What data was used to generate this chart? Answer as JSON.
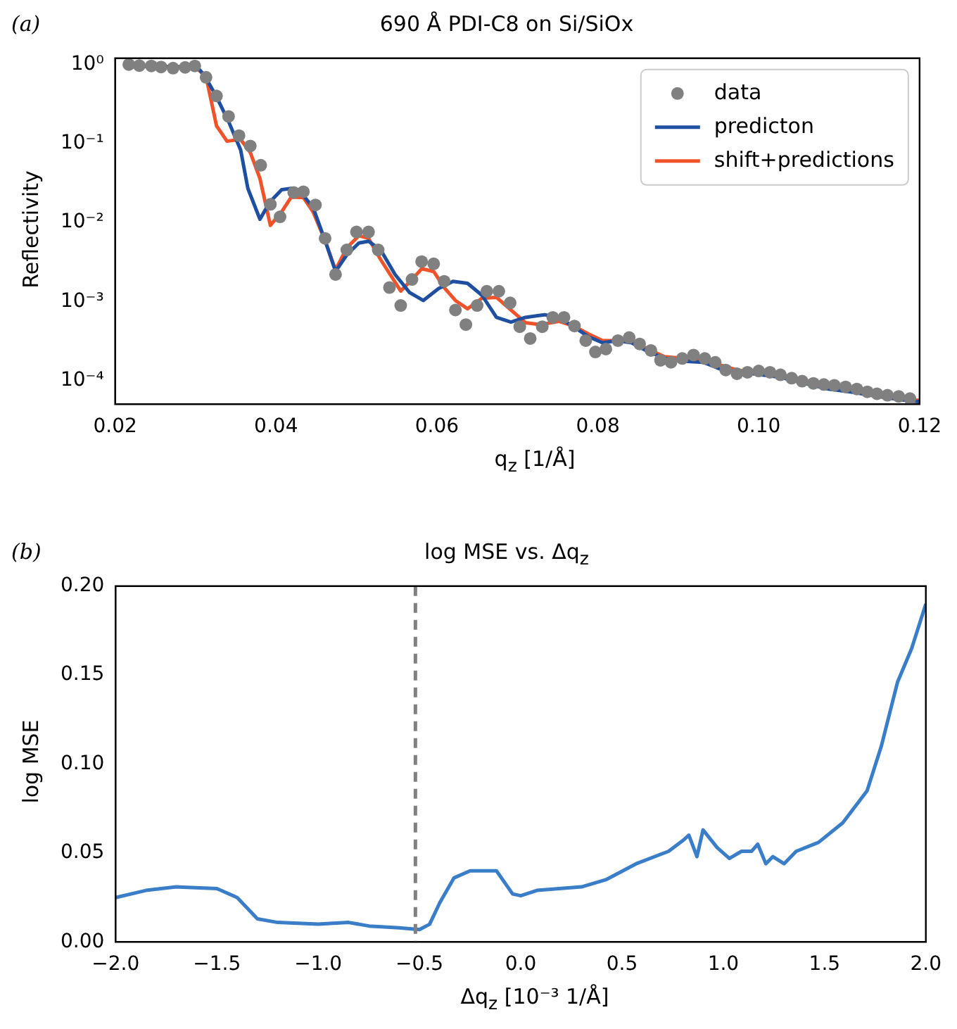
{
  "chart_data": [
    {
      "type": "line",
      "title": "690 Å PDI-C8 on Si/SiOx",
      "xlabel": "q$_{z}$ [1/Å]",
      "ylabel": "Reflectivity",
      "annotations": [
        "(a)"
      ],
      "log": "y",
      "grid": false,
      "legend": "top right",
      "xlim": [
        0.02,
        0.12
      ],
      "ylim": [
        5e-05,
        1.2
      ],
      "xticks": [
        {
          "value": 0.02,
          "label": "0.02"
        },
        {
          "value": 0.04,
          "label": "0.04"
        },
        {
          "value": 0.06,
          "label": "0.06"
        },
        {
          "value": 0.08,
          "label": "0.08"
        },
        {
          "value": 0.1,
          "label": "0.10"
        },
        {
          "value": 0.12,
          "label": "0.12"
        }
      ],
      "yticks": [
        {
          "value": 0.0001,
          "label": "10⁻⁴"
        },
        {
          "value": 0.001,
          "label": "10⁻³"
        },
        {
          "value": 0.01,
          "label": "10⁻²"
        },
        {
          "value": 0.1,
          "label": "10⁻¹"
        },
        {
          "value": 1,
          "label": "10⁰"
        }
      ],
      "series": [
        {
          "name": "data",
          "type": "scatter",
          "marker": "circle",
          "color": "#808080",
          "x": [
            0.0217,
            0.023,
            0.0245,
            0.0257,
            0.0272,
            0.0287,
            0.0299,
            0.0313,
            0.0326,
            0.0341,
            0.0354,
            0.0368,
            0.0381,
            0.0393,
            0.0405,
            0.0422,
            0.0434,
            0.0449,
            0.0461,
            0.0474,
            0.0488,
            0.05,
            0.0515,
            0.0527,
            0.0541,
            0.0555,
            0.0569,
            0.0581,
            0.0596,
            0.0609,
            0.0623,
            0.0636,
            0.065,
            0.0662,
            0.0677,
            0.0691,
            0.0703,
            0.0716,
            0.0731,
            0.0744,
            0.0758,
            0.0771,
            0.0785,
            0.0797,
            0.081,
            0.0825,
            0.0839,
            0.0852,
            0.0866,
            0.0878,
            0.0891,
            0.0905,
            0.0919,
            0.0933,
            0.0946,
            0.0959,
            0.0973,
            0.0986,
            0.1,
            0.1014,
            0.1027,
            0.1041,
            0.1054,
            0.1068,
            0.1081,
            0.1094,
            0.1108,
            0.1122,
            0.1135,
            0.1147,
            0.116,
            0.1174,
            0.1188
          ],
          "values": [
            1.0,
            0.97,
            0.96,
            0.93,
            0.9,
            0.92,
            0.96,
            0.69,
            0.4,
            0.22,
            0.126,
            0.093,
            0.053,
            0.017,
            0.0118,
            0.024,
            0.0245,
            0.0167,
            0.0063,
            0.0022,
            0.0045,
            0.0076,
            0.0076,
            0.0045,
            0.0015,
            0.00089,
            0.0019,
            0.0032,
            0.003,
            0.0018,
            0.00078,
            0.00051,
            0.00089,
            0.00135,
            0.00135,
            0.00096,
            0.00048,
            0.00034,
            0.00048,
            0.00063,
            0.00063,
            0.00049,
            0.00032,
            0.00023,
            0.00025,
            0.00032,
            0.00035,
            0.00029,
            0.00024,
            0.00018,
            0.00017,
            0.00019,
            0.00021,
            0.00019,
            0.00017,
            0.000136,
            0.000122,
            0.000127,
            0.000132,
            0.000127,
            0.000118,
            0.000107,
            9.8e-05,
            9.2e-05,
            8.9e-05,
            8.7e-05,
            8.3e-05,
            7.8e-05,
            7.2e-05,
            6.8e-05,
            6.5e-05,
            6.3e-05,
            5.9e-05
          ]
        },
        {
          "name": "predicton",
          "color": "#1f4fa0",
          "x": [
            0.0217,
            0.0302,
            0.0311,
            0.0326,
            0.0341,
            0.0356,
            0.0365,
            0.038,
            0.0392,
            0.0407,
            0.0419,
            0.0434,
            0.0446,
            0.0461,
            0.0474,
            0.0488,
            0.0503,
            0.0515,
            0.053,
            0.0548,
            0.0566,
            0.0583,
            0.0602,
            0.062,
            0.0638,
            0.0656,
            0.0674,
            0.0692,
            0.071,
            0.0734,
            0.0752,
            0.077,
            0.0788,
            0.0806,
            0.0824,
            0.0842,
            0.086,
            0.0883,
            0.0907,
            0.0931,
            0.0955,
            0.0979,
            0.1003,
            0.1027,
            0.1057,
            0.1087,
            0.1117,
            0.1147,
            0.1177,
            0.12
          ],
          "values": [
            0.96,
            0.93,
            0.73,
            0.39,
            0.19,
            0.083,
            0.027,
            0.011,
            0.018,
            0.026,
            0.027,
            0.022,
            0.0156,
            0.0059,
            0.0024,
            0.0039,
            0.0055,
            0.0058,
            0.0045,
            0.0022,
            0.0013,
            0.00103,
            0.00146,
            0.0018,
            0.0017,
            0.0012,
            0.00063,
            0.00055,
            0.00063,
            0.00068,
            0.00062,
            0.00048,
            0.00036,
            0.0003,
            0.00032,
            0.0003,
            0.00024,
            0.00019,
            0.000175,
            0.00017,
            0.000136,
            0.000127,
            0.000118,
            0.00011,
            9.2e-05,
            7.8e-05,
            7.1e-05,
            6.3e-05,
            5.7e-05,
            5.4e-05
          ]
        },
        {
          "name": "shift+predictions",
          "color": "#f0522a",
          "x": [
            0.0217,
            0.0302,
            0.0313,
            0.0326,
            0.0339,
            0.0356,
            0.0368,
            0.038,
            0.0393,
            0.0407,
            0.0419,
            0.0434,
            0.0446,
            0.0461,
            0.0474,
            0.0488,
            0.0503,
            0.0515,
            0.053,
            0.0555,
            0.0569,
            0.0581,
            0.0596,
            0.0609,
            0.0623,
            0.0638,
            0.0656,
            0.0674,
            0.0692,
            0.071,
            0.0728,
            0.0752,
            0.077,
            0.0788,
            0.0806,
            0.0824,
            0.0842,
            0.0866,
            0.0883,
            0.0907,
            0.0931,
            0.0949,
            0.0973,
            0.1003,
            0.1027,
            0.1057,
            0.1087,
            0.1117,
            0.1147,
            0.1177,
            0.12
          ],
          "values": [
            1.0,
            0.89,
            0.7,
            0.168,
            0.107,
            0.113,
            0.077,
            0.036,
            0.0092,
            0.0137,
            0.021,
            0.0207,
            0.0137,
            0.0059,
            0.0025,
            0.0048,
            0.0068,
            0.0063,
            0.0034,
            0.00136,
            0.0019,
            0.0026,
            0.0024,
            0.0015,
            0.00103,
            0.00081,
            0.0011,
            0.00113,
            0.00078,
            0.00054,
            0.00051,
            0.00056,
            0.00049,
            0.00039,
            0.00032,
            0.00032,
            0.00031,
            0.00024,
            0.0002,
            0.00019,
            0.00018,
            0.00016,
            0.000136,
            0.000122,
            0.000115,
            0.0001,
            8.7e-05,
            7.6e-05,
            6.6e-05,
            5.9e-05,
            5.6e-05
          ]
        }
      ]
    },
    {
      "type": "line",
      "title": "log MSE vs. Δq$_{z}$",
      "xlabel": "Δq$_{z}$ [10⁻³ 1/Å]",
      "ylabel": "log MSE",
      "annotations": [
        "(b)"
      ],
      "grid": false,
      "xlim": [
        -2,
        2
      ],
      "ylim": [
        0,
        0.2
      ],
      "xticks": [
        {
          "value": -2,
          "label": "−2.0"
        },
        {
          "value": -1.5,
          "label": "−1.5"
        },
        {
          "value": -1,
          "label": "−1.0"
        },
        {
          "value": -0.5,
          "label": "−0.5"
        },
        {
          "value": 0,
          "label": "0.0"
        },
        {
          "value": 0.5,
          "label": "0.5"
        },
        {
          "value": 1,
          "label": "1.0"
        },
        {
          "value": 1.5,
          "label": "1.5"
        },
        {
          "value": 2,
          "label": "2.0"
        }
      ],
      "yticks": [
        {
          "value": 0,
          "label": "0.00"
        },
        {
          "value": 0.05,
          "label": "0.05"
        },
        {
          "value": 0.1,
          "label": "0.10"
        },
        {
          "value": 0.15,
          "label": "0.15"
        },
        {
          "value": 0.2,
          "label": "0.20"
        }
      ],
      "ref_lines": [
        {
          "axis": "x",
          "value": -0.52,
          "color": "#808080",
          "line_style": "dashed"
        }
      ],
      "series": [
        {
          "color": "#3a7dc9",
          "x": [
            -2.0,
            -1.85,
            -1.7,
            -1.5,
            -1.4,
            -1.3,
            -1.2,
            -1.0,
            -0.85,
            -0.75,
            -0.6,
            -0.5,
            -0.45,
            -0.4,
            -0.33,
            -0.25,
            -0.12,
            -0.04,
            0.0,
            0.08,
            0.3,
            0.42,
            0.57,
            0.73,
            0.8,
            0.83,
            0.87,
            0.9,
            0.97,
            1.03,
            1.09,
            1.14,
            1.17,
            1.21,
            1.245,
            1.3,
            1.36,
            1.47,
            1.59,
            1.71,
            1.78,
            1.86,
            1.93,
            2.0
          ],
          "values": [
            0.025,
            0.029,
            0.031,
            0.03,
            0.025,
            0.013,
            0.011,
            0.01,
            0.011,
            0.009,
            0.008,
            0.007,
            0.01,
            0.022,
            0.036,
            0.04,
            0.04,
            0.027,
            0.026,
            0.029,
            0.031,
            0.035,
            0.044,
            0.051,
            0.057,
            0.06,
            0.048,
            0.063,
            0.053,
            0.047,
            0.051,
            0.051,
            0.055,
            0.044,
            0.048,
            0.044,
            0.051,
            0.056,
            0.067,
            0.085,
            0.11,
            0.146,
            0.165,
            0.19
          ]
        }
      ]
    }
  ]
}
